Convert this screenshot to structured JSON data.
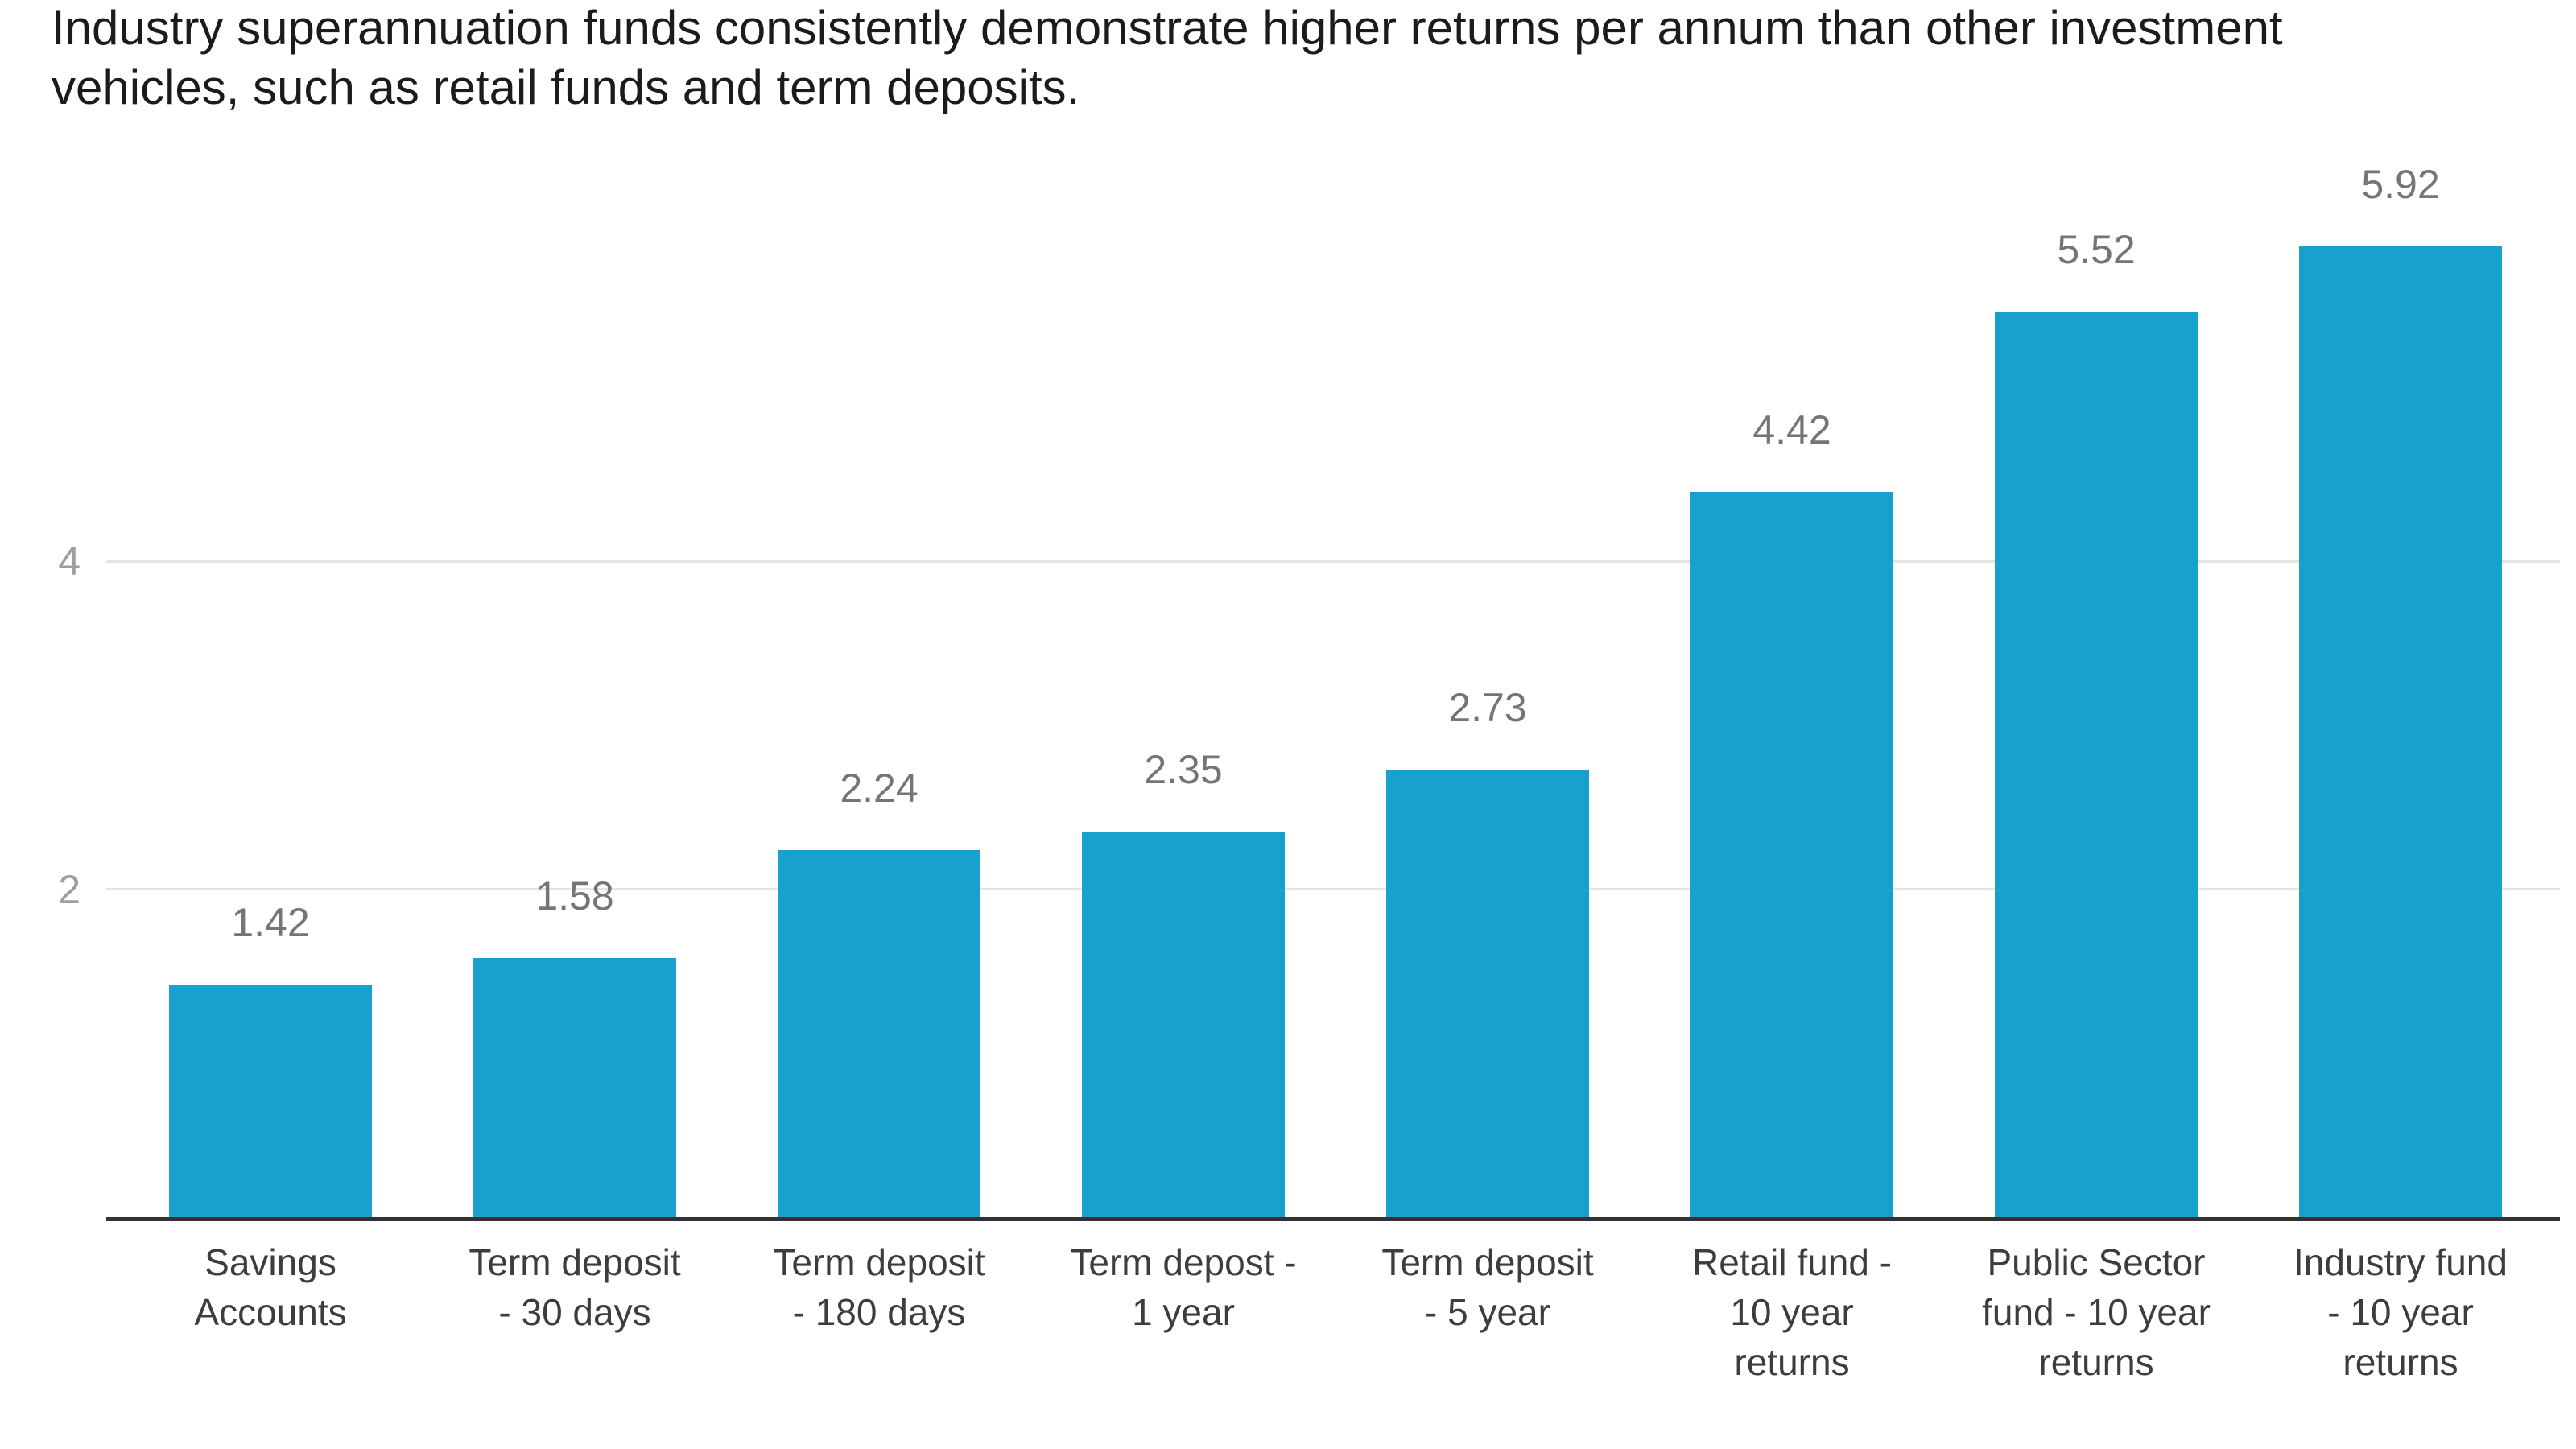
{
  "title": {
    "text": "Industry superannuation funds consistently demonstrate higher returns per annum than other investment vehicles, such as retail funds and term deposits.",
    "lines": [
      "Industry superannuation funds consistently demonstrate higher returns per annum than other investment",
      "vehicles, such as retail funds and term deposits."
    ]
  },
  "chart_data": {
    "type": "bar",
    "title": "Industry superannuation funds consistently demonstrate higher returns per annum than other investment vehicles, such as retail funds and term deposits.",
    "categories": [
      "Savings Accounts",
      "Term deposit - 30 days",
      "Term deposit - 180 days",
      "Term depost - 1 year",
      "Term deposit - 5 year",
      "Retail fund - 10 year returns",
      "Public Sector fund - 10 year returns",
      "Industry fund - 10 year returns"
    ],
    "category_lines": [
      [
        "Savings",
        "Accounts"
      ],
      [
        "Term deposit",
        "- 30 days"
      ],
      [
        "Term deposit",
        "- 180 days"
      ],
      [
        "Term depost -",
        "1 year"
      ],
      [
        "Term deposit",
        "- 5 year"
      ],
      [
        "Retail fund -",
        "10 year",
        "returns"
      ],
      [
        "Public Sector",
        "fund - 10 year",
        "returns"
      ],
      [
        "Industry fund",
        "- 10 year",
        "returns"
      ]
    ],
    "values": [
      1.42,
      1.58,
      2.24,
      2.35,
      2.73,
      4.42,
      5.52,
      5.92
    ],
    "value_labels": [
      "1.42",
      "1.58",
      "2.24",
      "2.35",
      "2.73",
      "4.42",
      "5.52",
      "5.92"
    ],
    "xlabel": "",
    "ylabel": "",
    "y_ticks": [
      2,
      4
    ],
    "ylim": [
      0,
      6.6
    ],
    "legend": "none",
    "grid": "horizontal",
    "colors": {
      "bar": "#17A1CC",
      "grid_line": "#E4E4E4",
      "axis_line": "#333333",
      "value_label": "#757575",
      "tick_label": "#9E9E9E",
      "category_label": "#3D3D3D",
      "title": "#1B1B1B",
      "background": "#FFFFFF"
    }
  }
}
